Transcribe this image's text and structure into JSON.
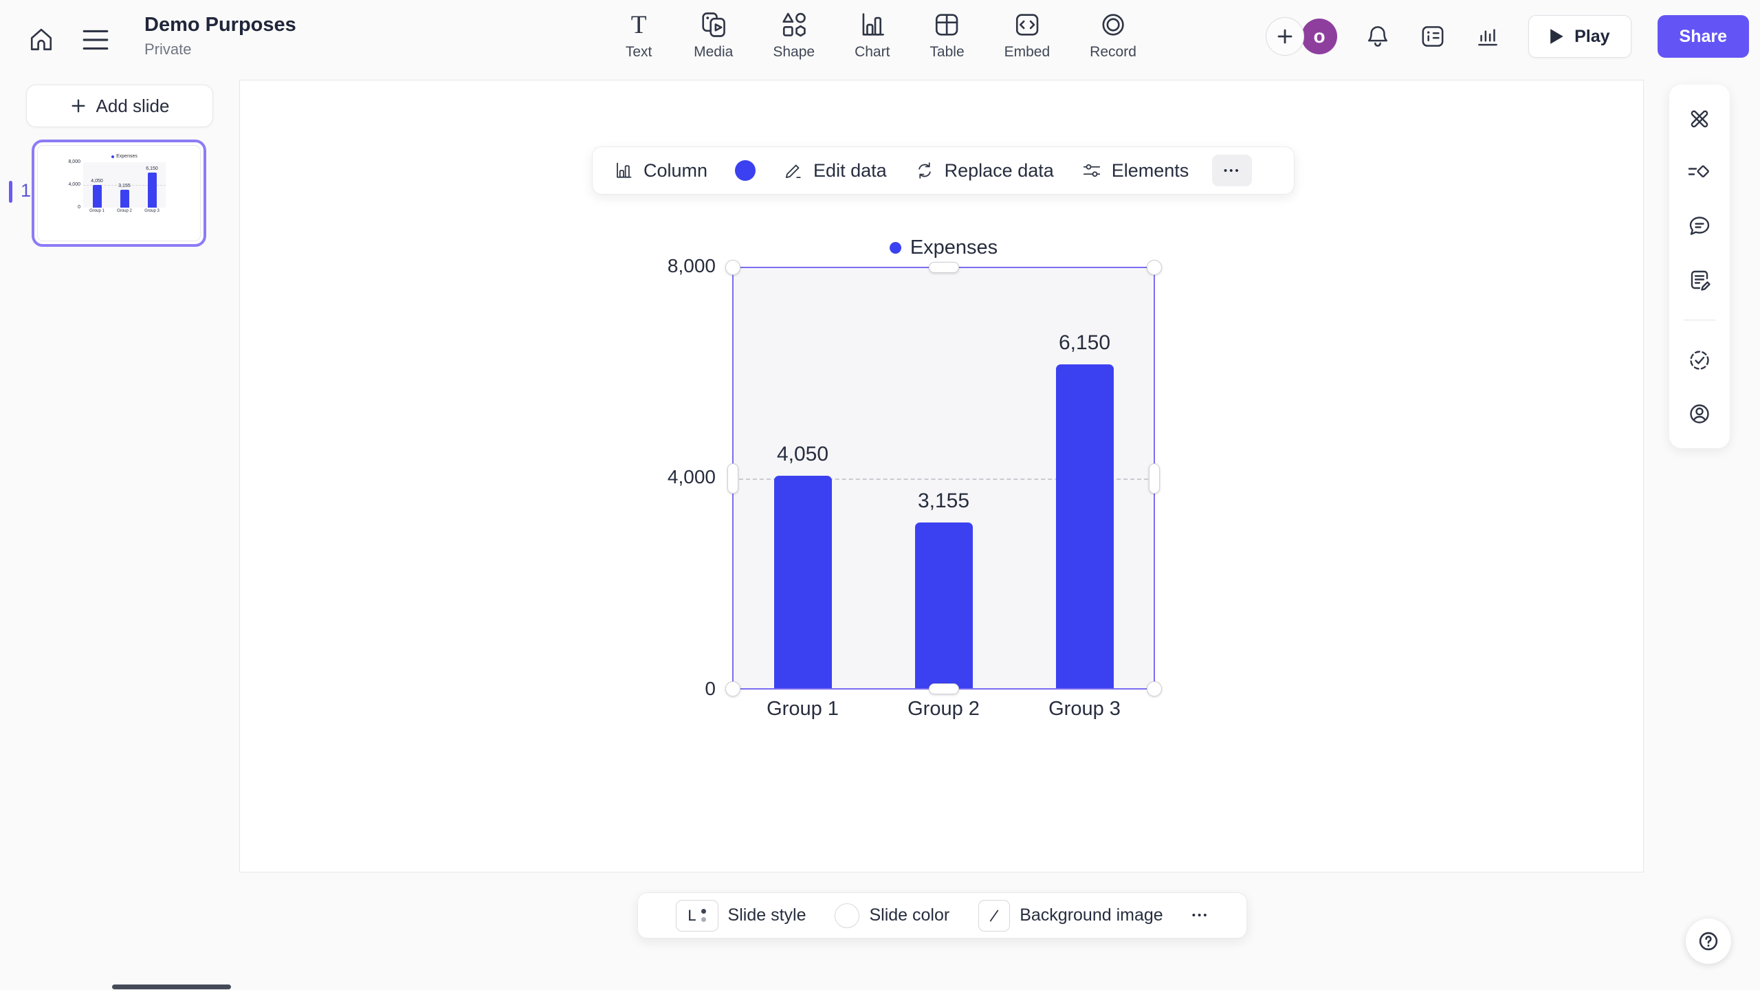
{
  "colors": {
    "accent_blue": "#3B41F0",
    "share_purple": "#6355F5",
    "selection_purple": "#7A6DF2",
    "thumb_selection": "#8B7CF6",
    "avatar_purple": "#8E3F9E"
  },
  "topbar": {
    "title": "Demo Purposes",
    "subtitle": "Private",
    "tools": [
      {
        "label": "Text"
      },
      {
        "label": "Media"
      },
      {
        "label": "Shape"
      },
      {
        "label": "Chart"
      },
      {
        "label": "Table"
      },
      {
        "label": "Embed"
      },
      {
        "label": "Record"
      }
    ],
    "avatar_initial": "o",
    "play_label": "Play",
    "share_label": "Share"
  },
  "sidebar": {
    "add_slide_label": "Add slide",
    "slide_number": "1"
  },
  "chart_toolbar": {
    "type_label": "Column",
    "edit_data_label": "Edit data",
    "replace_data_label": "Replace data",
    "elements_label": "Elements",
    "more": "•••"
  },
  "slide_toolbar": {
    "style_chip_letter": "L",
    "slide_style_label": "Slide style",
    "slide_color_label": "Slide color",
    "background_image_label": "Background image",
    "more": "•••"
  },
  "chart_data": {
    "type": "bar",
    "title": "",
    "categories": [
      "Group 1",
      "Group 2",
      "Group 3"
    ],
    "series": [
      {
        "name": "Expenses",
        "values": [
          4050,
          3155,
          6150
        ]
      }
    ],
    "data_labels": [
      "4,050",
      "3,155",
      "6,150"
    ],
    "yticks": [
      0,
      4000,
      8000
    ],
    "ytick_labels": [
      "0",
      "4,000",
      "8,000"
    ],
    "ylim": [
      0,
      8000
    ],
    "bar_color": "#3B41F0",
    "legend_position": "top",
    "grid": "horizontal-dashed-at-4000"
  }
}
